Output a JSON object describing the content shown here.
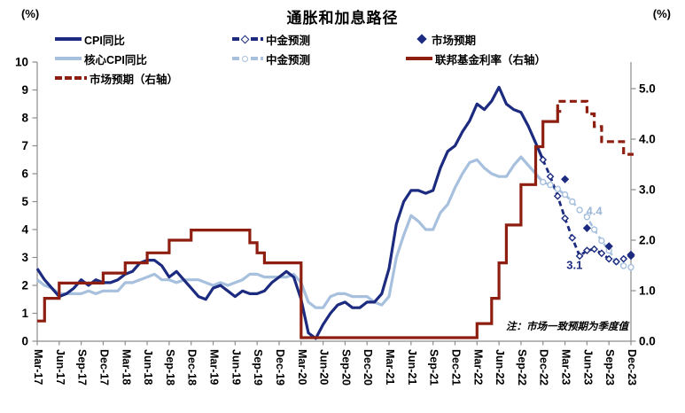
{
  "header": {
    "title": "通胀和加息路径",
    "left_axis_unit": "(%)",
    "right_axis_unit": "(%)"
  },
  "legend": {
    "cpi": "CPI同比",
    "cicc_cpi_forecast": "中金预测",
    "market_expectation": "市场预期",
    "core_cpi": "核心CPI同比",
    "cicc_core_forecast": "中金预测",
    "fed_funds": "联邦基金利率（右轴）",
    "fed_market_expectation": "市场预期（右轴）"
  },
  "note": "注：市场一致预期为季度值",
  "colors": {
    "navy": "#1C2B7F",
    "light_blue": "#A6C0DE",
    "dark_red": "#8E1E10",
    "axis_gray": "#8C8C8C",
    "annotation_light_blue": "#9CB6D6",
    "text": "#000000"
  },
  "chart_data": {
    "type": "line",
    "title": "通胀和加息路径",
    "x_axis": {
      "labels": [
        "Mar-17",
        "Jun-17",
        "Sep-17",
        "Dec-17",
        "Mar-18",
        "Jun-18",
        "Sep-18",
        "Dec-18",
        "Mar-19",
        "Jun-19",
        "Sep-19",
        "Dec-19",
        "Mar-20",
        "Jun-20",
        "Sep-20",
        "Dec-20",
        "Mar-21",
        "Jun-21",
        "Sep-21",
        "Dec-21",
        "Mar-22",
        "Jun-22",
        "Sep-22",
        "Dec-22",
        "Mar-23",
        "Jun-23",
        "Sep-23",
        "Dec-23"
      ],
      "months_total": 81
    },
    "left_axis": {
      "unit": "(%)",
      "min": 0,
      "max": 10,
      "tick_labels": [
        "0",
        "1",
        "2",
        "3",
        "4",
        "5",
        "6",
        "7",
        "8",
        "9",
        "10"
      ]
    },
    "right_axis": {
      "unit": "(%)",
      "min": 0,
      "max": 5,
      "tick_labels": [
        "0.0",
        "1.0",
        "2.0",
        "3.0",
        "4.0",
        "5.0"
      ]
    },
    "series": [
      {
        "name": "核心CPI同比",
        "axis": "left",
        "style": "solid",
        "color": "#A6C0DE",
        "start_month": 0,
        "values": [
          2.2,
          2.0,
          1.9,
          1.7,
          1.7,
          1.7,
          1.7,
          1.8,
          1.7,
          1.8,
          1.8,
          1.8,
          2.1,
          2.1,
          2.2,
          2.3,
          2.4,
          2.2,
          2.2,
          2.1,
          2.2,
          2.2,
          2.2,
          2.1,
          2.0,
          2.1,
          2.0,
          2.1,
          2.2,
          2.4,
          2.4,
          2.3,
          2.3,
          2.3,
          2.3,
          2.4,
          2.1,
          1.4,
          1.2,
          1.2,
          1.6,
          1.7,
          1.7,
          1.6,
          1.6,
          1.6,
          1.4,
          1.3,
          1.6,
          3.0,
          3.8,
          4.5,
          4.3,
          4.0,
          4.0,
          4.6,
          4.9,
          5.5,
          6.0,
          6.4,
          6.5,
          6.2,
          6.0,
          5.9,
          5.9,
          6.3,
          6.6,
          6.3,
          6.0,
          5.7
        ]
      },
      {
        "name": "CPI同比",
        "axis": "left",
        "style": "solid",
        "color": "#1C2B7F",
        "start_month": 0,
        "values": [
          2.6,
          2.2,
          1.9,
          1.6,
          1.7,
          1.9,
          2.2,
          2.0,
          2.2,
          2.1,
          2.1,
          2.2,
          2.4,
          2.5,
          2.8,
          2.9,
          2.9,
          2.7,
          2.3,
          2.5,
          2.2,
          1.9,
          1.6,
          1.5,
          1.9,
          2.0,
          1.8,
          1.6,
          1.8,
          1.7,
          1.7,
          1.8,
          2.1,
          2.3,
          2.5,
          2.3,
          1.5,
          0.3,
          0.1,
          0.6,
          1.0,
          1.3,
          1.4,
          1.2,
          1.2,
          1.4,
          1.4,
          1.7,
          2.6,
          4.2,
          5.0,
          5.4,
          5.4,
          5.3,
          5.4,
          6.2,
          6.8,
          7.0,
          7.5,
          7.9,
          8.5,
          8.3,
          8.6,
          9.1,
          8.5,
          8.3,
          8.2,
          7.7,
          7.1,
          6.5
        ]
      },
      {
        "name": "中金预测（核心CPI）",
        "axis": "left",
        "style": "dashed-circle",
        "color": "#A6C0DE",
        "start_month": 69,
        "values": [
          5.7,
          5.6,
          5.45,
          5.25,
          5.0,
          4.7,
          4.45,
          4.0,
          3.6,
          3.25,
          2.85,
          2.7,
          2.65
        ]
      },
      {
        "name": "中金预测（CPI）",
        "axis": "left",
        "style": "dashed-diamond",
        "color": "#1C2B7F",
        "start_month": 69,
        "values": [
          6.5,
          5.9,
          5.2,
          4.4,
          3.7,
          3.05,
          3.25,
          3.3,
          3.15,
          2.95,
          2.85,
          2.95,
          3.05
        ]
      },
      {
        "name": "市场预期（CPI，季度）",
        "axis": "left",
        "style": "diamond-points",
        "color": "#1C2B7F",
        "months": [
          72,
          75,
          78,
          81
        ],
        "values": [
          5.8,
          4.05,
          3.4,
          3.1
        ]
      },
      {
        "name": "联邦基金利率（右轴）",
        "axis": "right",
        "style": "step",
        "color": "#8E1E10",
        "start_month": 0,
        "values": [
          0.4,
          0.85,
          0.85,
          1.15,
          1.15,
          1.15,
          1.15,
          1.15,
          1.15,
          1.35,
          1.35,
          1.35,
          1.55,
          1.55,
          1.55,
          1.75,
          1.75,
          1.75,
          2.0,
          2.0,
          2.0,
          2.2,
          2.2,
          2.2,
          2.2,
          2.2,
          2.2,
          2.2,
          2.2,
          1.95,
          1.75,
          1.55,
          1.55,
          1.55,
          1.55,
          1.55,
          0.07,
          0.07,
          0.07,
          0.07,
          0.07,
          0.07,
          0.07,
          0.07,
          0.07,
          0.07,
          0.07,
          0.07,
          0.07,
          0.07,
          0.07,
          0.07,
          0.07,
          0.07,
          0.07,
          0.07,
          0.07,
          0.07,
          0.07,
          0.07,
          0.35,
          0.35,
          0.85,
          1.55,
          2.3,
          2.3,
          3.1,
          3.1,
          3.85,
          4.35,
          4.35,
          4.55
        ]
      },
      {
        "name": "市场预期（联邦基金利率，右轴）",
        "axis": "right",
        "style": "step-dashed",
        "color": "#8E1E10",
        "start_month": 71,
        "values": [
          4.75,
          4.75,
          4.75,
          4.75,
          4.5,
          4.25,
          3.95,
          3.95,
          3.95,
          3.7,
          3.7
        ]
      }
    ],
    "annotations": [
      {
        "text": "4.4",
        "month": 76.0,
        "value": 4.52,
        "color": "#9CB6D6",
        "series": "中金预测（核心CPI）"
      },
      {
        "text": "3.1",
        "month": 73.3,
        "value": 2.58,
        "color": "#1C2B7F",
        "series": "中金预测（CPI）"
      }
    ],
    "layout_hints": {
      "grid": false,
      "legend_position": "top",
      "x_labels_rotated": true
    }
  }
}
